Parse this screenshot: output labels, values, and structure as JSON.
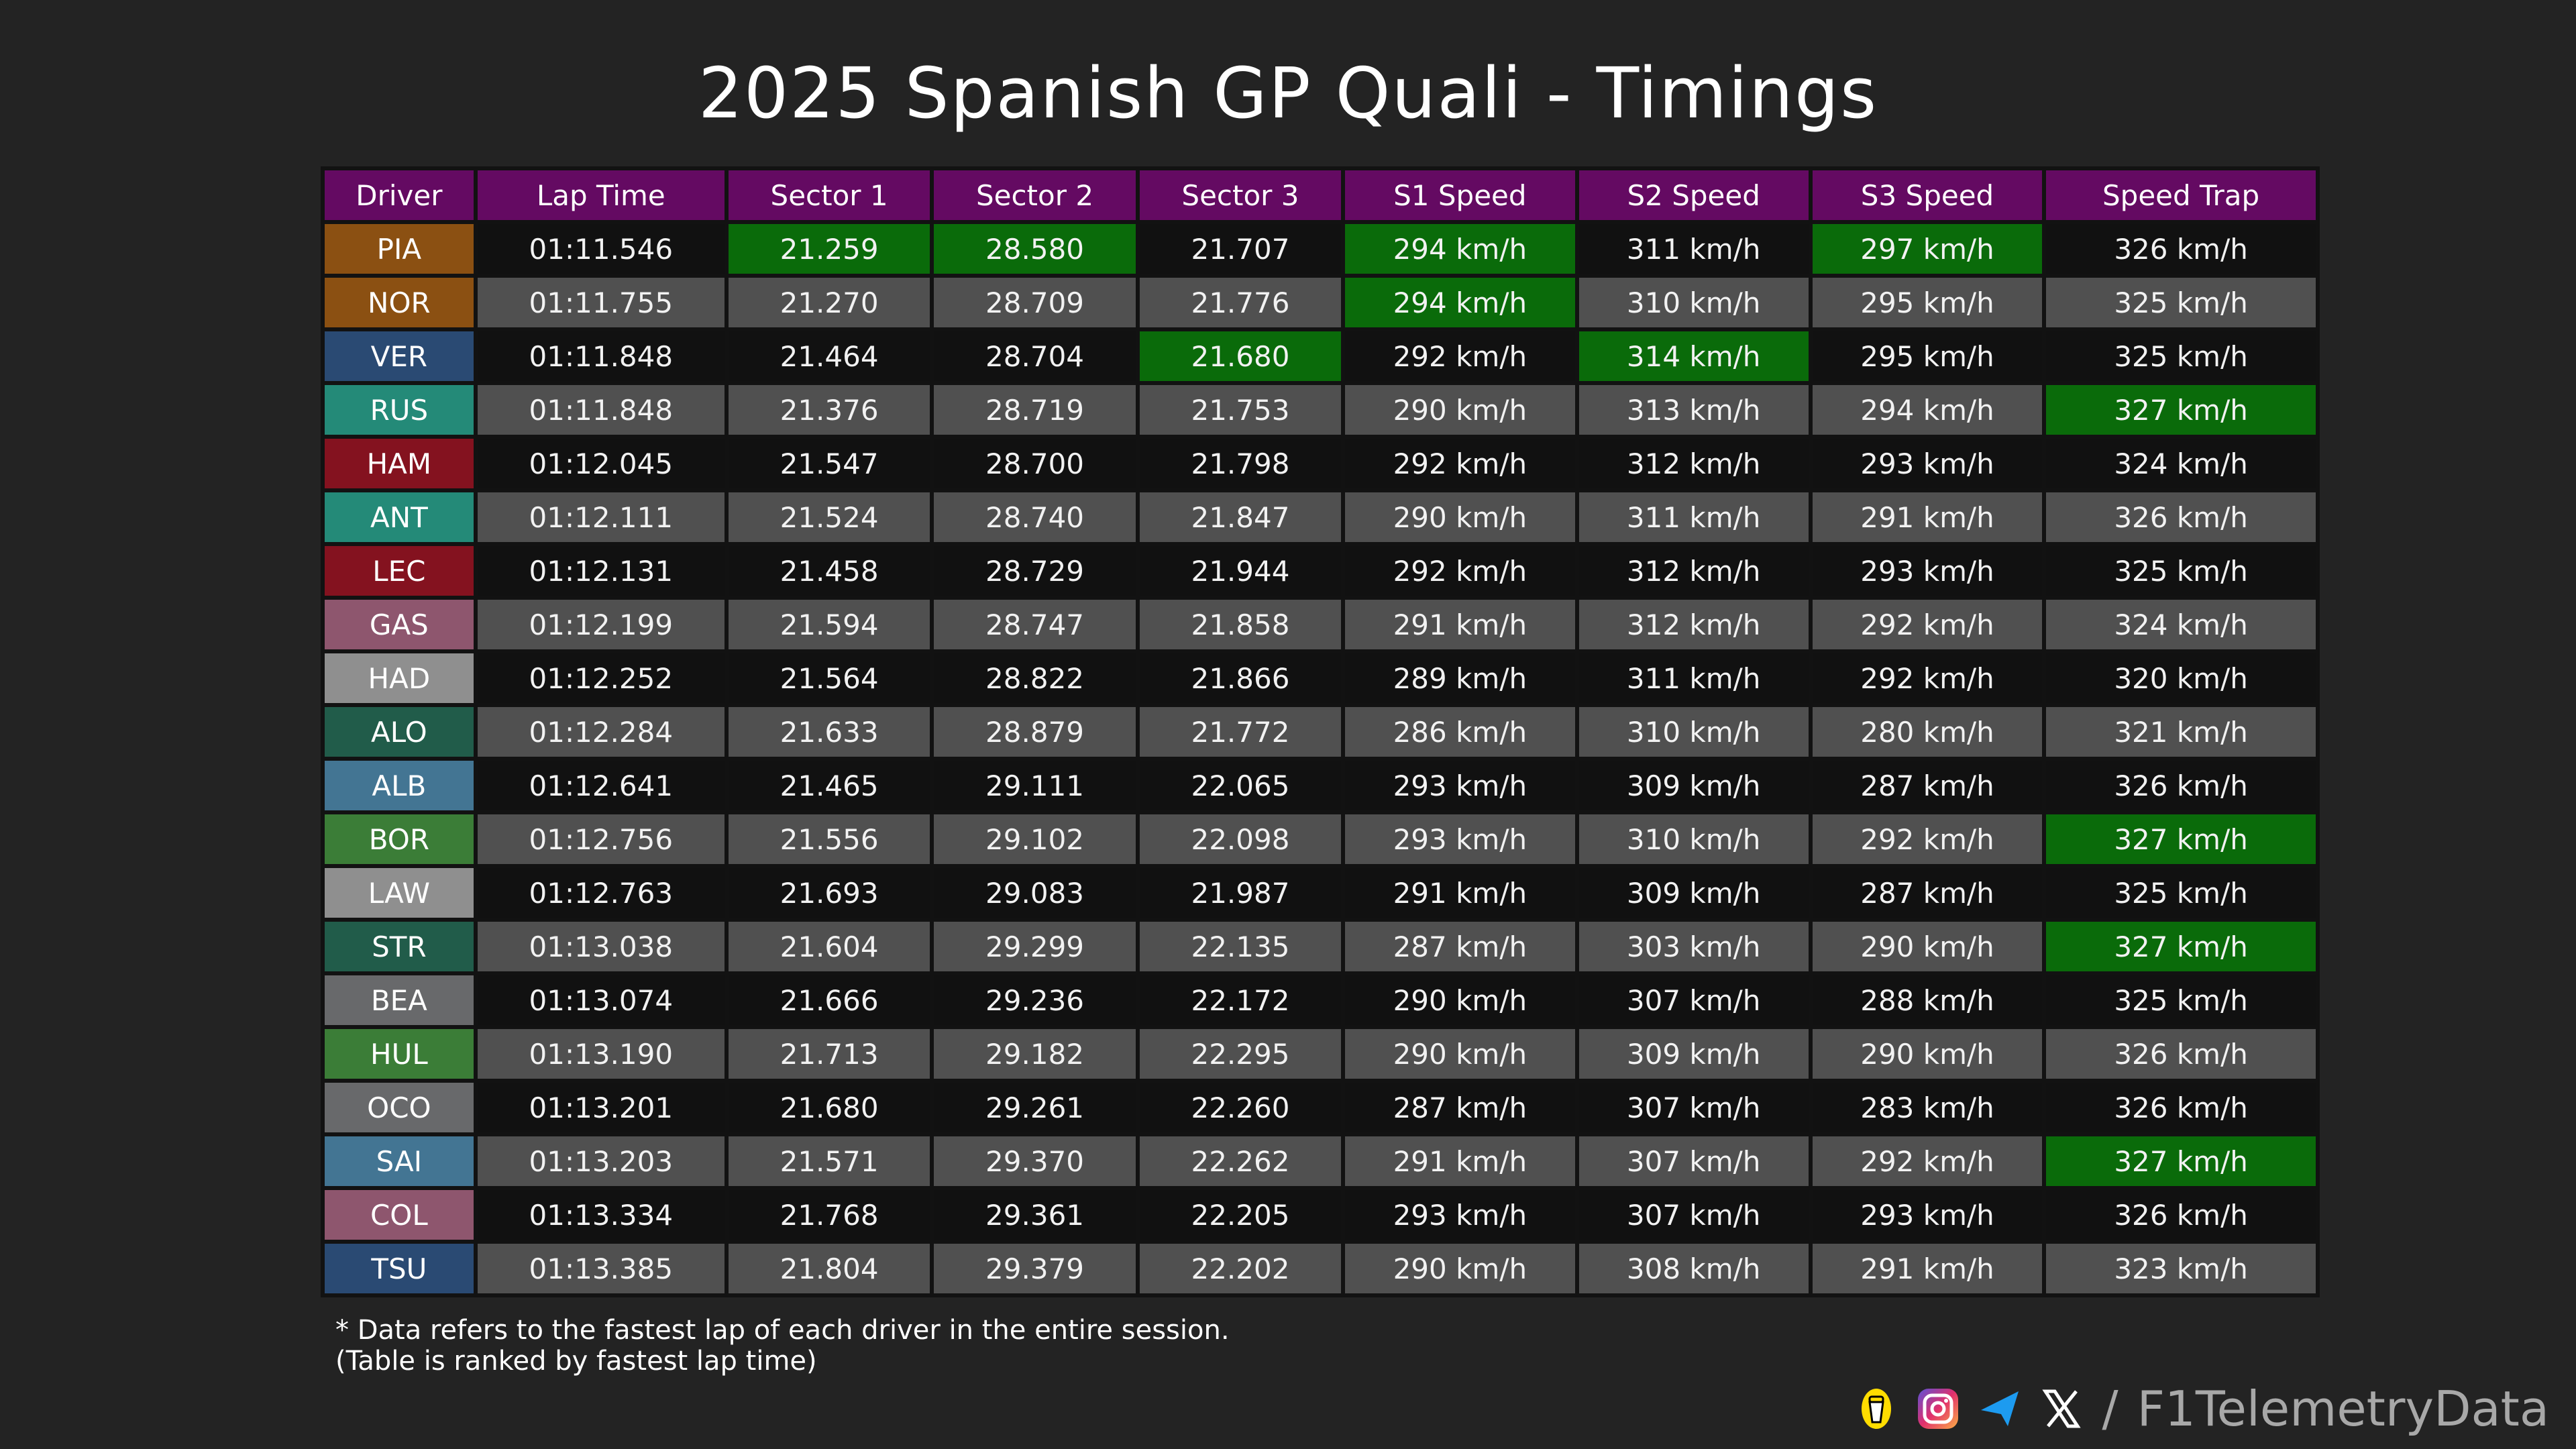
{
  "title": "2025 Spanish GP Quali - Timings",
  "watermark": "@F1TelemetryData",
  "colors": {
    "header": "#640a62",
    "best": "#0a6b0a",
    "row_dark": "#111111",
    "row_gray": "#505050",
    "background": "#232323"
  },
  "chart_data": {
    "type": "table",
    "title": "2025 Spanish GP Quali - Timings",
    "columns": [
      "Driver",
      "Lap Time",
      "Sector 1",
      "Sector 2",
      "Sector 3",
      "S1 Speed",
      "S2 Speed",
      "S3 Speed",
      "Speed Trap"
    ],
    "rows": [
      {
        "driver": "PIA",
        "color": "#8b5012",
        "cells": [
          "01:11.546",
          "21.259",
          "28.580",
          "21.707",
          "294 km/h",
          "311 km/h",
          "297 km/h",
          "326 km/h"
        ],
        "best": [
          1,
          2,
          4,
          6
        ]
      },
      {
        "driver": "NOR",
        "color": "#8b5012",
        "cells": [
          "01:11.755",
          "21.270",
          "28.709",
          "21.776",
          "294 km/h",
          "310 km/h",
          "295 km/h",
          "325 km/h"
        ],
        "best": [
          4
        ]
      },
      {
        "driver": "VER",
        "color": "#2a4a73",
        "cells": [
          "01:11.848",
          "21.464",
          "28.704",
          "21.680",
          "292 km/h",
          "314 km/h",
          "295 km/h",
          "325 km/h"
        ],
        "best": [
          3,
          5
        ]
      },
      {
        "driver": "RUS",
        "color": "#248a78",
        "cells": [
          "01:11.848",
          "21.376",
          "28.719",
          "21.753",
          "290 km/h",
          "313 km/h",
          "294 km/h",
          "327 km/h"
        ],
        "best": [
          7
        ]
      },
      {
        "driver": "HAM",
        "color": "#84121f",
        "cells": [
          "01:12.045",
          "21.547",
          "28.700",
          "21.798",
          "292 km/h",
          "312 km/h",
          "293 km/h",
          "324 km/h"
        ],
        "best": []
      },
      {
        "driver": "ANT",
        "color": "#248a78",
        "cells": [
          "01:12.111",
          "21.524",
          "28.740",
          "21.847",
          "290 km/h",
          "311 km/h",
          "291 km/h",
          "326 km/h"
        ],
        "best": []
      },
      {
        "driver": "LEC",
        "color": "#84121f",
        "cells": [
          "01:12.131",
          "21.458",
          "28.729",
          "21.944",
          "292 km/h",
          "312 km/h",
          "293 km/h",
          "325 km/h"
        ],
        "best": []
      },
      {
        "driver": "GAS",
        "color": "#8e566e",
        "cells": [
          "01:12.199",
          "21.594",
          "28.747",
          "21.858",
          "291 km/h",
          "312 km/h",
          "292 km/h",
          "324 km/h"
        ],
        "best": []
      },
      {
        "driver": "HAD",
        "color": "#8f8f8f",
        "cells": [
          "01:12.252",
          "21.564",
          "28.822",
          "21.866",
          "289 km/h",
          "311 km/h",
          "292 km/h",
          "320 km/h"
        ],
        "best": []
      },
      {
        "driver": "ALO",
        "color": "#215c4a",
        "cells": [
          "01:12.284",
          "21.633",
          "28.879",
          "21.772",
          "286 km/h",
          "310 km/h",
          "280 km/h",
          "321 km/h"
        ],
        "best": []
      },
      {
        "driver": "ALB",
        "color": "#437593",
        "cells": [
          "01:12.641",
          "21.465",
          "29.111",
          "22.065",
          "293 km/h",
          "309 km/h",
          "287 km/h",
          "326 km/h"
        ],
        "best": []
      },
      {
        "driver": "BOR",
        "color": "#3b7d37",
        "cells": [
          "01:12.756",
          "21.556",
          "29.102",
          "22.098",
          "293 km/h",
          "310 km/h",
          "292 km/h",
          "327 km/h"
        ],
        "best": [
          7
        ]
      },
      {
        "driver": "LAW",
        "color": "#8f8f8f",
        "cells": [
          "01:12.763",
          "21.693",
          "29.083",
          "21.987",
          "291 km/h",
          "309 km/h",
          "287 km/h",
          "325 km/h"
        ],
        "best": []
      },
      {
        "driver": "STR",
        "color": "#215c4a",
        "cells": [
          "01:13.038",
          "21.604",
          "29.299",
          "22.135",
          "287 km/h",
          "303 km/h",
          "290 km/h",
          "327 km/h"
        ],
        "best": [
          7
        ]
      },
      {
        "driver": "BEA",
        "color": "#68696b",
        "cells": [
          "01:13.074",
          "21.666",
          "29.236",
          "22.172",
          "290 km/h",
          "307 km/h",
          "288 km/h",
          "325 km/h"
        ],
        "best": []
      },
      {
        "driver": "HUL",
        "color": "#3b7d37",
        "cells": [
          "01:13.190",
          "21.713",
          "29.182",
          "22.295",
          "290 km/h",
          "309 km/h",
          "290 km/h",
          "326 km/h"
        ],
        "best": []
      },
      {
        "driver": "OCO",
        "color": "#68696b",
        "cells": [
          "01:13.201",
          "21.680",
          "29.261",
          "22.260",
          "287 km/h",
          "307 km/h",
          "283 km/h",
          "326 km/h"
        ],
        "best": []
      },
      {
        "driver": "SAI",
        "color": "#437593",
        "cells": [
          "01:13.203",
          "21.571",
          "29.370",
          "22.262",
          "291 km/h",
          "307 km/h",
          "292 km/h",
          "327 km/h"
        ],
        "best": [
          7
        ]
      },
      {
        "driver": "COL",
        "color": "#8e566e",
        "cells": [
          "01:13.334",
          "21.768",
          "29.361",
          "22.205",
          "293 km/h",
          "307 km/h",
          "293 km/h",
          "326 km/h"
        ],
        "best": []
      },
      {
        "driver": "TSU",
        "color": "#2a4a73",
        "cells": [
          "01:13.385",
          "21.804",
          "29.379",
          "22.202",
          "290 km/h",
          "308 km/h",
          "291 km/h",
          "323 km/h"
        ],
        "best": []
      }
    ]
  },
  "notes": {
    "line1": "* Data refers to the fastest lap of each driver in the entire session.",
    "line2": "(Table is ranked by fastest lap time)"
  },
  "social": {
    "slash": "/",
    "handle": "F1TelemetryData"
  }
}
